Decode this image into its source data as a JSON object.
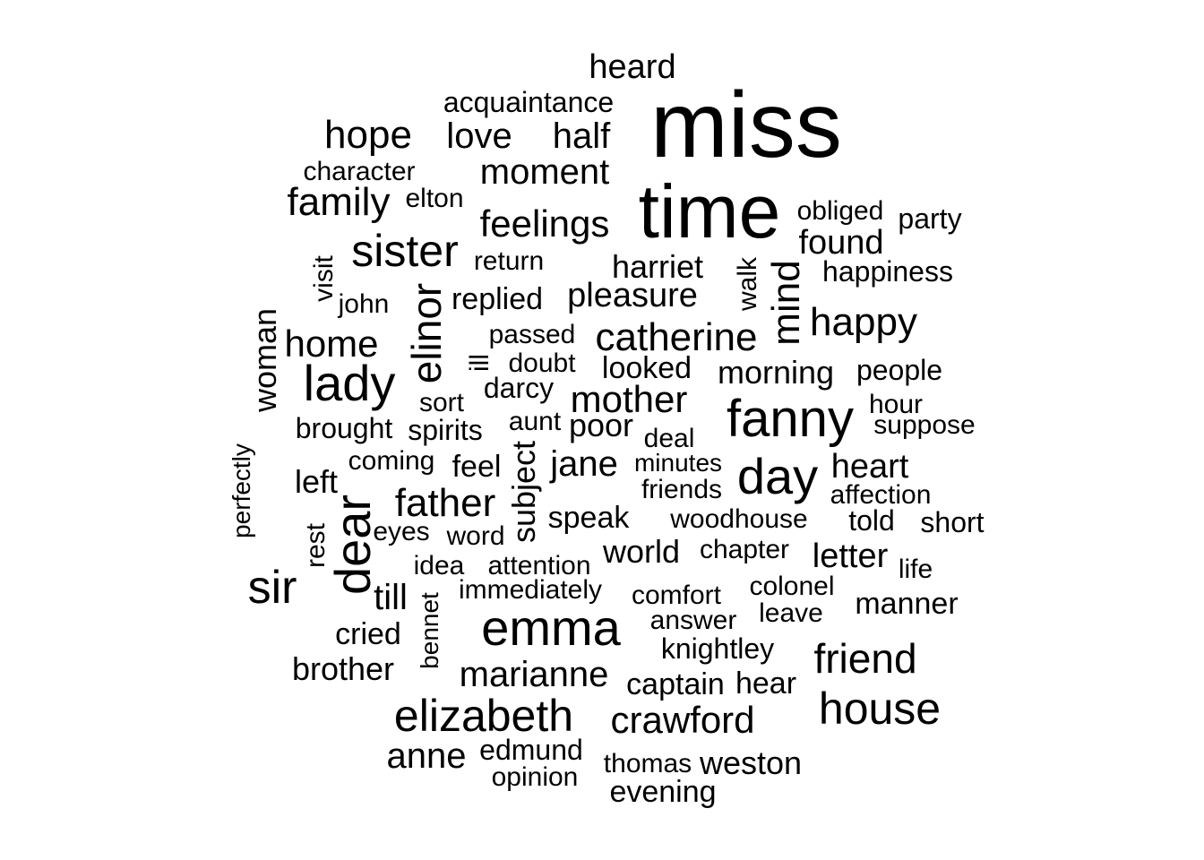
{
  "text_color": "#000000",
  "background": "#ffffff",
  "words": [
    {
      "t": "miss"
    },
    {
      "t": "time"
    },
    {
      "t": "heard"
    },
    {
      "t": "acquaintance"
    },
    {
      "t": "hope"
    },
    {
      "t": "love"
    },
    {
      "t": "half"
    },
    {
      "t": "moment"
    },
    {
      "t": "character"
    },
    {
      "t": "family"
    },
    {
      "t": "elton"
    },
    {
      "t": "feelings"
    },
    {
      "t": "obliged"
    },
    {
      "t": "party"
    },
    {
      "t": "sister"
    },
    {
      "t": "found"
    },
    {
      "t": "visit"
    },
    {
      "t": "return"
    },
    {
      "t": "harriet"
    },
    {
      "t": "walk"
    },
    {
      "t": "mind"
    },
    {
      "t": "happiness"
    },
    {
      "t": "elinor"
    },
    {
      "t": "john"
    },
    {
      "t": "replied"
    },
    {
      "t": "pleasure"
    },
    {
      "t": "woman"
    },
    {
      "t": "happy"
    },
    {
      "t": "home"
    },
    {
      "t": "passed"
    },
    {
      "t": "catherine"
    },
    {
      "t": "ill"
    },
    {
      "t": "lady"
    },
    {
      "t": "doubt"
    },
    {
      "t": "looked"
    },
    {
      "t": "morning"
    },
    {
      "t": "people"
    },
    {
      "t": "darcy"
    },
    {
      "t": "mother"
    },
    {
      "t": "sort"
    },
    {
      "t": "hour"
    },
    {
      "t": "fanny"
    },
    {
      "t": "brought"
    },
    {
      "t": "spirits"
    },
    {
      "t": "aunt"
    },
    {
      "t": "poor"
    },
    {
      "t": "suppose"
    },
    {
      "t": "perfectly"
    },
    {
      "t": "deal"
    },
    {
      "t": "coming"
    },
    {
      "t": "feel"
    },
    {
      "t": "jane"
    },
    {
      "t": "minutes"
    },
    {
      "t": "day"
    },
    {
      "t": "heart"
    },
    {
      "t": "left"
    },
    {
      "t": "subject"
    },
    {
      "t": "friends"
    },
    {
      "t": "affection"
    },
    {
      "t": "father"
    },
    {
      "t": "dear"
    },
    {
      "t": "speak"
    },
    {
      "t": "woodhouse"
    },
    {
      "t": "told"
    },
    {
      "t": "short"
    },
    {
      "t": "eyes"
    },
    {
      "t": "rest"
    },
    {
      "t": "word"
    },
    {
      "t": "world"
    },
    {
      "t": "chapter"
    },
    {
      "t": "letter"
    },
    {
      "t": "sir"
    },
    {
      "t": "idea"
    },
    {
      "t": "attention"
    },
    {
      "t": "life"
    },
    {
      "t": "till"
    },
    {
      "t": "immediately"
    },
    {
      "t": "comfort"
    },
    {
      "t": "colonel"
    },
    {
      "t": "manner"
    },
    {
      "t": "bennet"
    },
    {
      "t": "emma"
    },
    {
      "t": "answer"
    },
    {
      "t": "leave"
    },
    {
      "t": "cried"
    },
    {
      "t": "knightley"
    },
    {
      "t": "friend"
    },
    {
      "t": "brother"
    },
    {
      "t": "marianne"
    },
    {
      "t": "captain"
    },
    {
      "t": "hear"
    },
    {
      "t": "elizabeth"
    },
    {
      "t": "crawford"
    },
    {
      "t": "house"
    },
    {
      "t": "anne"
    },
    {
      "t": "edmund"
    },
    {
      "t": "thomas"
    },
    {
      "t": "weston"
    },
    {
      "t": "opinion"
    },
    {
      "t": "evening"
    }
  ]
}
